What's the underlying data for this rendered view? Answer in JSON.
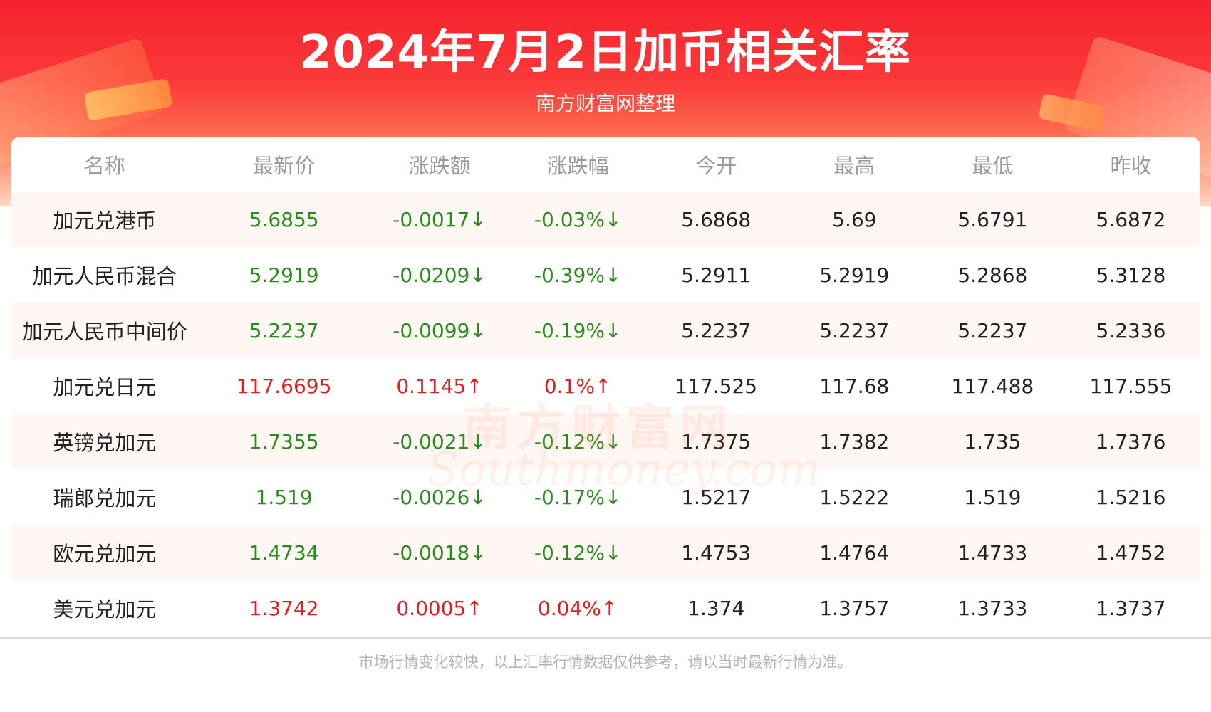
{
  "header": {
    "title": "2024年7月2日加币相关汇率",
    "subtitle": "南方财富网整理"
  },
  "colors": {
    "up": "#e02020",
    "down": "#2a8c1e",
    "normal": "#222222"
  },
  "table": {
    "columns": [
      "名称",
      "最新价",
      "涨跌额",
      "涨跌幅",
      "今开",
      "最高",
      "最低",
      "昨收"
    ],
    "rows": [
      {
        "name": "加元兑港币",
        "latest": "5.6855",
        "change": "-0.0017↓",
        "pct": "-0.03%↓",
        "open": "5.6868",
        "high": "5.69",
        "low": "5.6791",
        "prev": "5.6872",
        "dir": "down"
      },
      {
        "name": "加元人民币混合",
        "latest": "5.2919",
        "change": "-0.0209↓",
        "pct": "-0.39%↓",
        "open": "5.2911",
        "high": "5.2919",
        "low": "5.2868",
        "prev": "5.3128",
        "dir": "down"
      },
      {
        "name": "加元人民币中间价",
        "latest": "5.2237",
        "change": "-0.0099↓",
        "pct": "-0.19%↓",
        "open": "5.2237",
        "high": "5.2237",
        "low": "5.2237",
        "prev": "5.2336",
        "dir": "down"
      },
      {
        "name": "加元兑日元",
        "latest": "117.6695",
        "change": "0.1145↑",
        "pct": "0.1%↑",
        "open": "117.525",
        "high": "117.68",
        "low": "117.488",
        "prev": "117.555",
        "dir": "up"
      },
      {
        "name": "英镑兑加元",
        "latest": "1.7355",
        "change": "-0.0021↓",
        "pct": "-0.12%↓",
        "open": "1.7375",
        "high": "1.7382",
        "low": "1.735",
        "prev": "1.7376",
        "dir": "down"
      },
      {
        "name": "瑞郎兑加元",
        "latest": "1.519",
        "change": "-0.0026↓",
        "pct": "-0.17%↓",
        "open": "1.5217",
        "high": "1.5222",
        "low": "1.519",
        "prev": "1.5216",
        "dir": "down"
      },
      {
        "name": "欧元兑加元",
        "latest": "1.4734",
        "change": "-0.0018↓",
        "pct": "-0.12%↓",
        "open": "1.4753",
        "high": "1.4764",
        "low": "1.4733",
        "prev": "1.4752",
        "dir": "down"
      },
      {
        "name": "美元兑加元",
        "latest": "1.3742",
        "change": "0.0005↑",
        "pct": "0.04%↑",
        "open": "1.374",
        "high": "1.3757",
        "low": "1.3733",
        "prev": "1.3737",
        "dir": "up"
      }
    ]
  },
  "watermark": {
    "cn": "南方财富网",
    "en": "Southmoney.com"
  },
  "footer": {
    "note": "市场行情变化较快，以上汇率行情数据仅供参考，请以当时最新行情为准。"
  }
}
